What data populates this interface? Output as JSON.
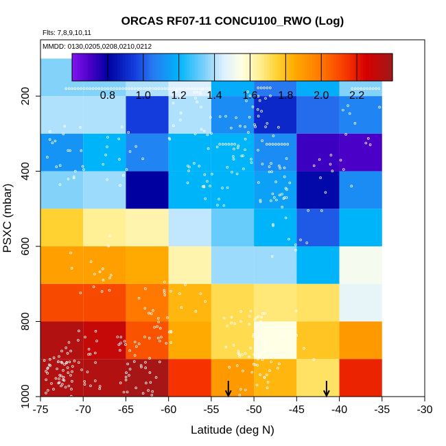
{
  "chart_data": {
    "type": "heatmap",
    "title": "ORCAS RF07-11 CONCU100_RWO (Log)",
    "annotation_flights": "Flts: 7,8,9,10,11",
    "annotation_dates": "MMDD: 0130,0205,0208,0210,0212",
    "xlabel": "Latitude (deg N)",
    "ylabel": "PSXC (mbar)",
    "xlim": [
      -75,
      -30
    ],
    "ylim": [
      1000,
      50
    ],
    "x_ticks": [
      -75,
      -70,
      -65,
      -60,
      -55,
      -50,
      -45,
      -40,
      -35,
      -30
    ],
    "x_tick_labels": [
      "-75",
      "-70",
      "-65",
      "-60",
      "-55",
      "-50",
      "-45",
      "-40",
      "-35",
      "-30"
    ],
    "y_ticks": [
      200,
      400,
      600,
      800,
      1000
    ],
    "y_tick_labels": [
      "200",
      "400",
      "600",
      "800",
      "1000"
    ],
    "colorbar": {
      "min": 0.6,
      "max": 2.4,
      "ticks": [
        0.8,
        1.0,
        1.2,
        1.4,
        1.6,
        1.8,
        2.0,
        2.2
      ],
      "tick_labels": [
        "0.8",
        "1.0",
        "1.2",
        "1.4",
        "1.6",
        "1.8",
        "2.0",
        "2.2"
      ]
    },
    "lat_bins": [
      -75,
      -70,
      -65,
      -60,
      -55,
      -50,
      -45,
      -40,
      -35
    ],
    "pressure_bins": [
      100,
      200,
      300,
      400,
      500,
      600,
      700,
      800,
      900,
      1000
    ],
    "values": [
      [
        1.35,
        1.35,
        1.4,
        1.45,
        1.18,
        1.05,
        1.18,
        1.35
      ],
      [
        1.4,
        1.4,
        0.95,
        1.4,
        1.1,
        0.9,
        1.03,
        1.08
      ],
      [
        1.12,
        1.2,
        1.08,
        1.2,
        1.2,
        1.1,
        0.72,
        0.7
      ],
      [
        1.35,
        1.38,
        0.8,
        1.2,
        1.2,
        1.15,
        0.82,
        1.1
      ],
      [
        1.75,
        1.65,
        1.62,
        1.42,
        1.32,
        1.2,
        1.0,
        1.2
      ],
      [
        1.88,
        1.88,
        1.85,
        1.62,
        1.38,
        1.38,
        1.2,
        1.52
      ],
      [
        2.1,
        2.1,
        2.0,
        1.82,
        1.72,
        1.68,
        1.7,
        1.48
      ],
      [
        2.35,
        2.3,
        2.08,
        1.85,
        1.72,
        1.55,
        1.78,
        1.9
      ],
      [
        2.35,
        2.35,
        2.38,
        2.15,
        1.9,
        1.82,
        1.7,
        2.18
      ]
    ],
    "arrows_lat": [
      -53,
      -41.5
    ]
  }
}
